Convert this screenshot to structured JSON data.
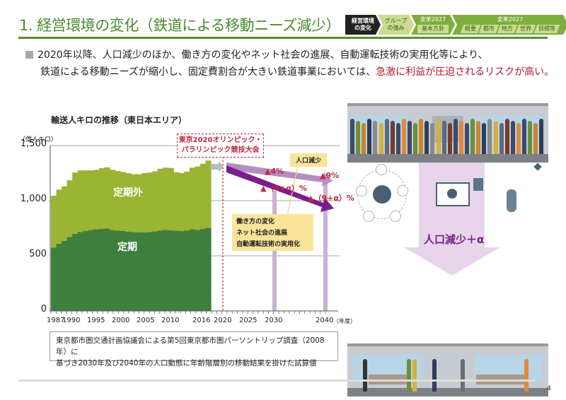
{
  "header": {
    "title": "1. 経営環境の変化（鉄道による移動ニーズ減少）",
    "nav": {
      "current": [
        "経営環境",
        "の変化"
      ],
      "group": [
        "グループ",
        "の強み"
      ],
      "reform_policy": {
        "top": "変革2027",
        "sub": "基本方針"
      },
      "reform": {
        "top": "変革2027",
        "subs": [
          "概要",
          "都市",
          "地方",
          "世界",
          "目標等"
        ]
      }
    }
  },
  "bullet": {
    "line1": "2020年以降、人口減少のほか、働き方の変化やネット社会の進展、自動運転技術の実用化等により、",
    "line2_plain": "鉄道による移動ニーズが縮小し、固定費割合が大きい鉄道事業においては、",
    "line2_red": "急激に利益が圧迫されるリスクが高い。"
  },
  "chart_data": {
    "type": "area",
    "title": "輸送人キロの推移（東日本エリア）",
    "ylabel": "（億人キロ）",
    "xlabel": "（年度）",
    "ylim": [
      0,
      1500
    ],
    "yticks": [
      "1,500",
      "1,000",
      "500",
      "0"
    ],
    "xticks": [
      "1987",
      "1990",
      "1995",
      "2000",
      "2005",
      "2010",
      "2016",
      "2020",
      "2025",
      "2030",
      "2040"
    ],
    "x": [
      1987,
      1988,
      1989,
      1990,
      1991,
      1992,
      1993,
      1994,
      1995,
      1996,
      1997,
      1998,
      1999,
      2000,
      2001,
      2002,
      2003,
      2004,
      2005,
      2006,
      2007,
      2008,
      2009,
      2010,
      2011,
      2012,
      2013,
      2014,
      2015,
      2016
    ],
    "series": [
      {
        "name": "定期",
        "values": [
          575,
          610,
          635,
          670,
          700,
          715,
          725,
          735,
          740,
          745,
          748,
          735,
          730,
          725,
          720,
          715,
          712,
          712,
          715,
          722,
          730,
          735,
          732,
          728,
          725,
          730,
          740,
          735,
          745,
          755
        ]
      },
      {
        "name": "定期外",
        "values": [
          470,
          490,
          495,
          515,
          555,
          560,
          550,
          540,
          540,
          550,
          555,
          545,
          540,
          535,
          530,
          525,
          528,
          538,
          540,
          545,
          560,
          565,
          565,
          530,
          525,
          535,
          560,
          575,
          590,
          610
        ]
      }
    ],
    "series_labels": {
      "outer": "定期外",
      "commuter": "定期"
    },
    "annotations": {
      "olympic": [
        "東京2020オリンピック・",
        "パラリンピック競技大会"
      ],
      "population_decline": "人口減少",
      "pct_2030_pop": "▲4%",
      "pct_2040_pop": "▲9%",
      "pct_2030_alpha": "▲（4+α）%",
      "pct_2040_alpha": "▲（9+α）%",
      "factors": [
        "働き方の変化",
        "ネット社会の進展",
        "自動運転技術の実用化"
      ]
    },
    "colors": {
      "commuter": "#3f7f3e",
      "non_commuter": "#9ab534",
      "arrow_pop": "#b48dc2",
      "arrow_alpha": "#7a1d8c",
      "olympic": "#c0283c"
    }
  },
  "note": {
    "line1": "東京都市圏交通計画協議会による第5回東京都市圏パーソントリップ調査（2008年）に",
    "line2": "基づき2030年及び2040年の人口動態に年齢階層別の移動結果を掛けた試算値"
  },
  "illustration": {
    "label": "人口減少＋α"
  },
  "footer": {
    "page": "4"
  }
}
